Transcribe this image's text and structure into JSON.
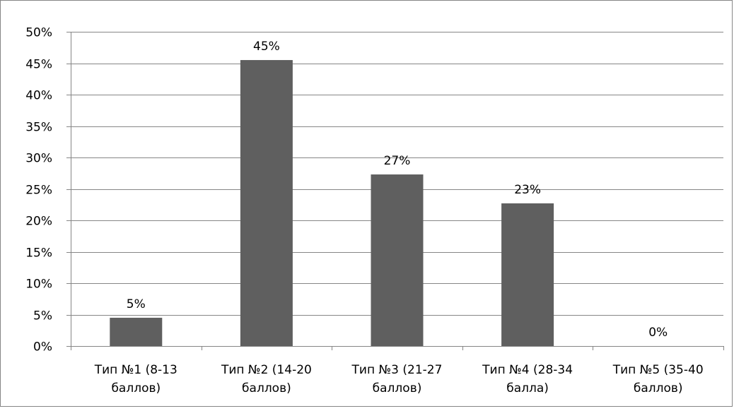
{
  "chart_data": {
    "type": "bar",
    "title": "",
    "xlabel": "",
    "ylabel": "",
    "categories": [
      [
        "Тип №1 (8-13",
        "баллов)"
      ],
      [
        "Тип №2 (14-20",
        "баллов)"
      ],
      [
        "Тип №3 (21-27",
        "баллов)"
      ],
      [
        "Тип №4 (28-34",
        "балла)"
      ],
      [
        "Тип №5 (35-40",
        "баллов)"
      ]
    ],
    "values": [
      4.5,
      45.5,
      27.3,
      22.7,
      0
    ],
    "data_labels": [
      "5%",
      "45%",
      "27%",
      "23%",
      "0%"
    ],
    "ylim": [
      0,
      50
    ],
    "yticks": [
      0,
      5,
      10,
      15,
      20,
      25,
      30,
      35,
      40,
      45,
      50
    ],
    "ytick_suffix": "%",
    "grid": true,
    "legend": "none",
    "bar_color": "#5f5f5f",
    "grid_color": "#868686"
  }
}
